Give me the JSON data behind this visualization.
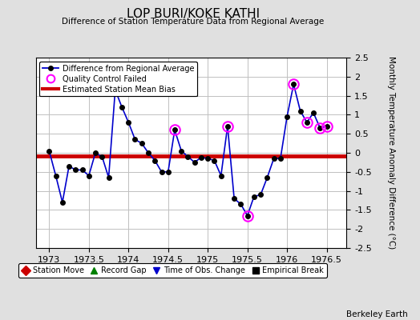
{
  "title": "LOP BURI/KOKE KATHI",
  "subtitle": "Difference of Station Temperature Data from Regional Average",
  "ylabel": "Monthly Temperature Anomaly Difference (°C)",
  "xlabel_values": [
    1973,
    1973.5,
    1974,
    1974.5,
    1975,
    1975.5,
    1976,
    1976.5
  ],
  "xlim": [
    1972.83,
    1976.75
  ],
  "ylim": [
    -2.5,
    2.5
  ],
  "yticks": [
    -2.5,
    -2,
    -1.5,
    -1,
    -0.5,
    0,
    0.5,
    1,
    1.5,
    2,
    2.5
  ],
  "mean_bias": -0.08,
  "line_color": "#0000CC",
  "line_width": 1.2,
  "marker_color": "black",
  "marker_size": 4,
  "bias_color": "#CC0000",
  "bias_linewidth": 3.5,
  "background_color": "#E0E0E0",
  "plot_background": "#FFFFFF",
  "grid_color": "#C0C0C0",
  "watermark": "Berkeley Earth",
  "x_data": [
    1973.0,
    1973.083,
    1973.167,
    1973.25,
    1973.333,
    1973.417,
    1973.5,
    1973.583,
    1973.667,
    1973.75,
    1973.833,
    1973.917,
    1974.0,
    1974.083,
    1974.167,
    1974.25,
    1974.333,
    1974.417,
    1974.5,
    1974.583,
    1974.667,
    1974.75,
    1974.833,
    1974.917,
    1975.0,
    1975.083,
    1975.167,
    1975.25,
    1975.333,
    1975.417,
    1975.5,
    1975.583,
    1975.667,
    1975.75,
    1975.833,
    1975.917,
    1976.0,
    1976.083,
    1976.167,
    1976.25,
    1976.333,
    1976.417,
    1976.5
  ],
  "y_data": [
    0.05,
    -0.6,
    -1.3,
    -0.35,
    -0.45,
    -0.45,
    -0.6,
    0.0,
    -0.1,
    -0.65,
    1.65,
    1.2,
    0.8,
    0.35,
    0.25,
    0.0,
    -0.2,
    -0.5,
    -0.5,
    0.6,
    0.05,
    -0.1,
    -0.25,
    -0.12,
    -0.15,
    -0.2,
    -0.6,
    0.7,
    -1.2,
    -1.35,
    -1.65,
    -1.15,
    -1.1,
    -0.65,
    -0.15,
    -0.15,
    0.95,
    1.8,
    1.1,
    0.8,
    1.05,
    0.65,
    0.7
  ],
  "qc_failed_indices": [
    19,
    27,
    30,
    37,
    39,
    41,
    42
  ],
  "qc_circle_size": 9,
  "legend1_items": [
    {
      "label": "Difference from Regional Average",
      "color": "#0000CC",
      "type": "line_dot"
    },
    {
      "label": "Quality Control Failed",
      "color": "magenta",
      "type": "circle_open"
    },
    {
      "label": "Estimated Station Mean Bias",
      "color": "#CC0000",
      "type": "line"
    }
  ],
  "legend2_items": [
    {
      "label": "Station Move",
      "color": "#CC0000",
      "marker": "D"
    },
    {
      "label": "Record Gap",
      "color": "green",
      "marker": "^"
    },
    {
      "label": "Time of Obs. Change",
      "color": "#0000CC",
      "marker": "v"
    },
    {
      "label": "Empirical Break",
      "color": "black",
      "marker": "s"
    }
  ]
}
